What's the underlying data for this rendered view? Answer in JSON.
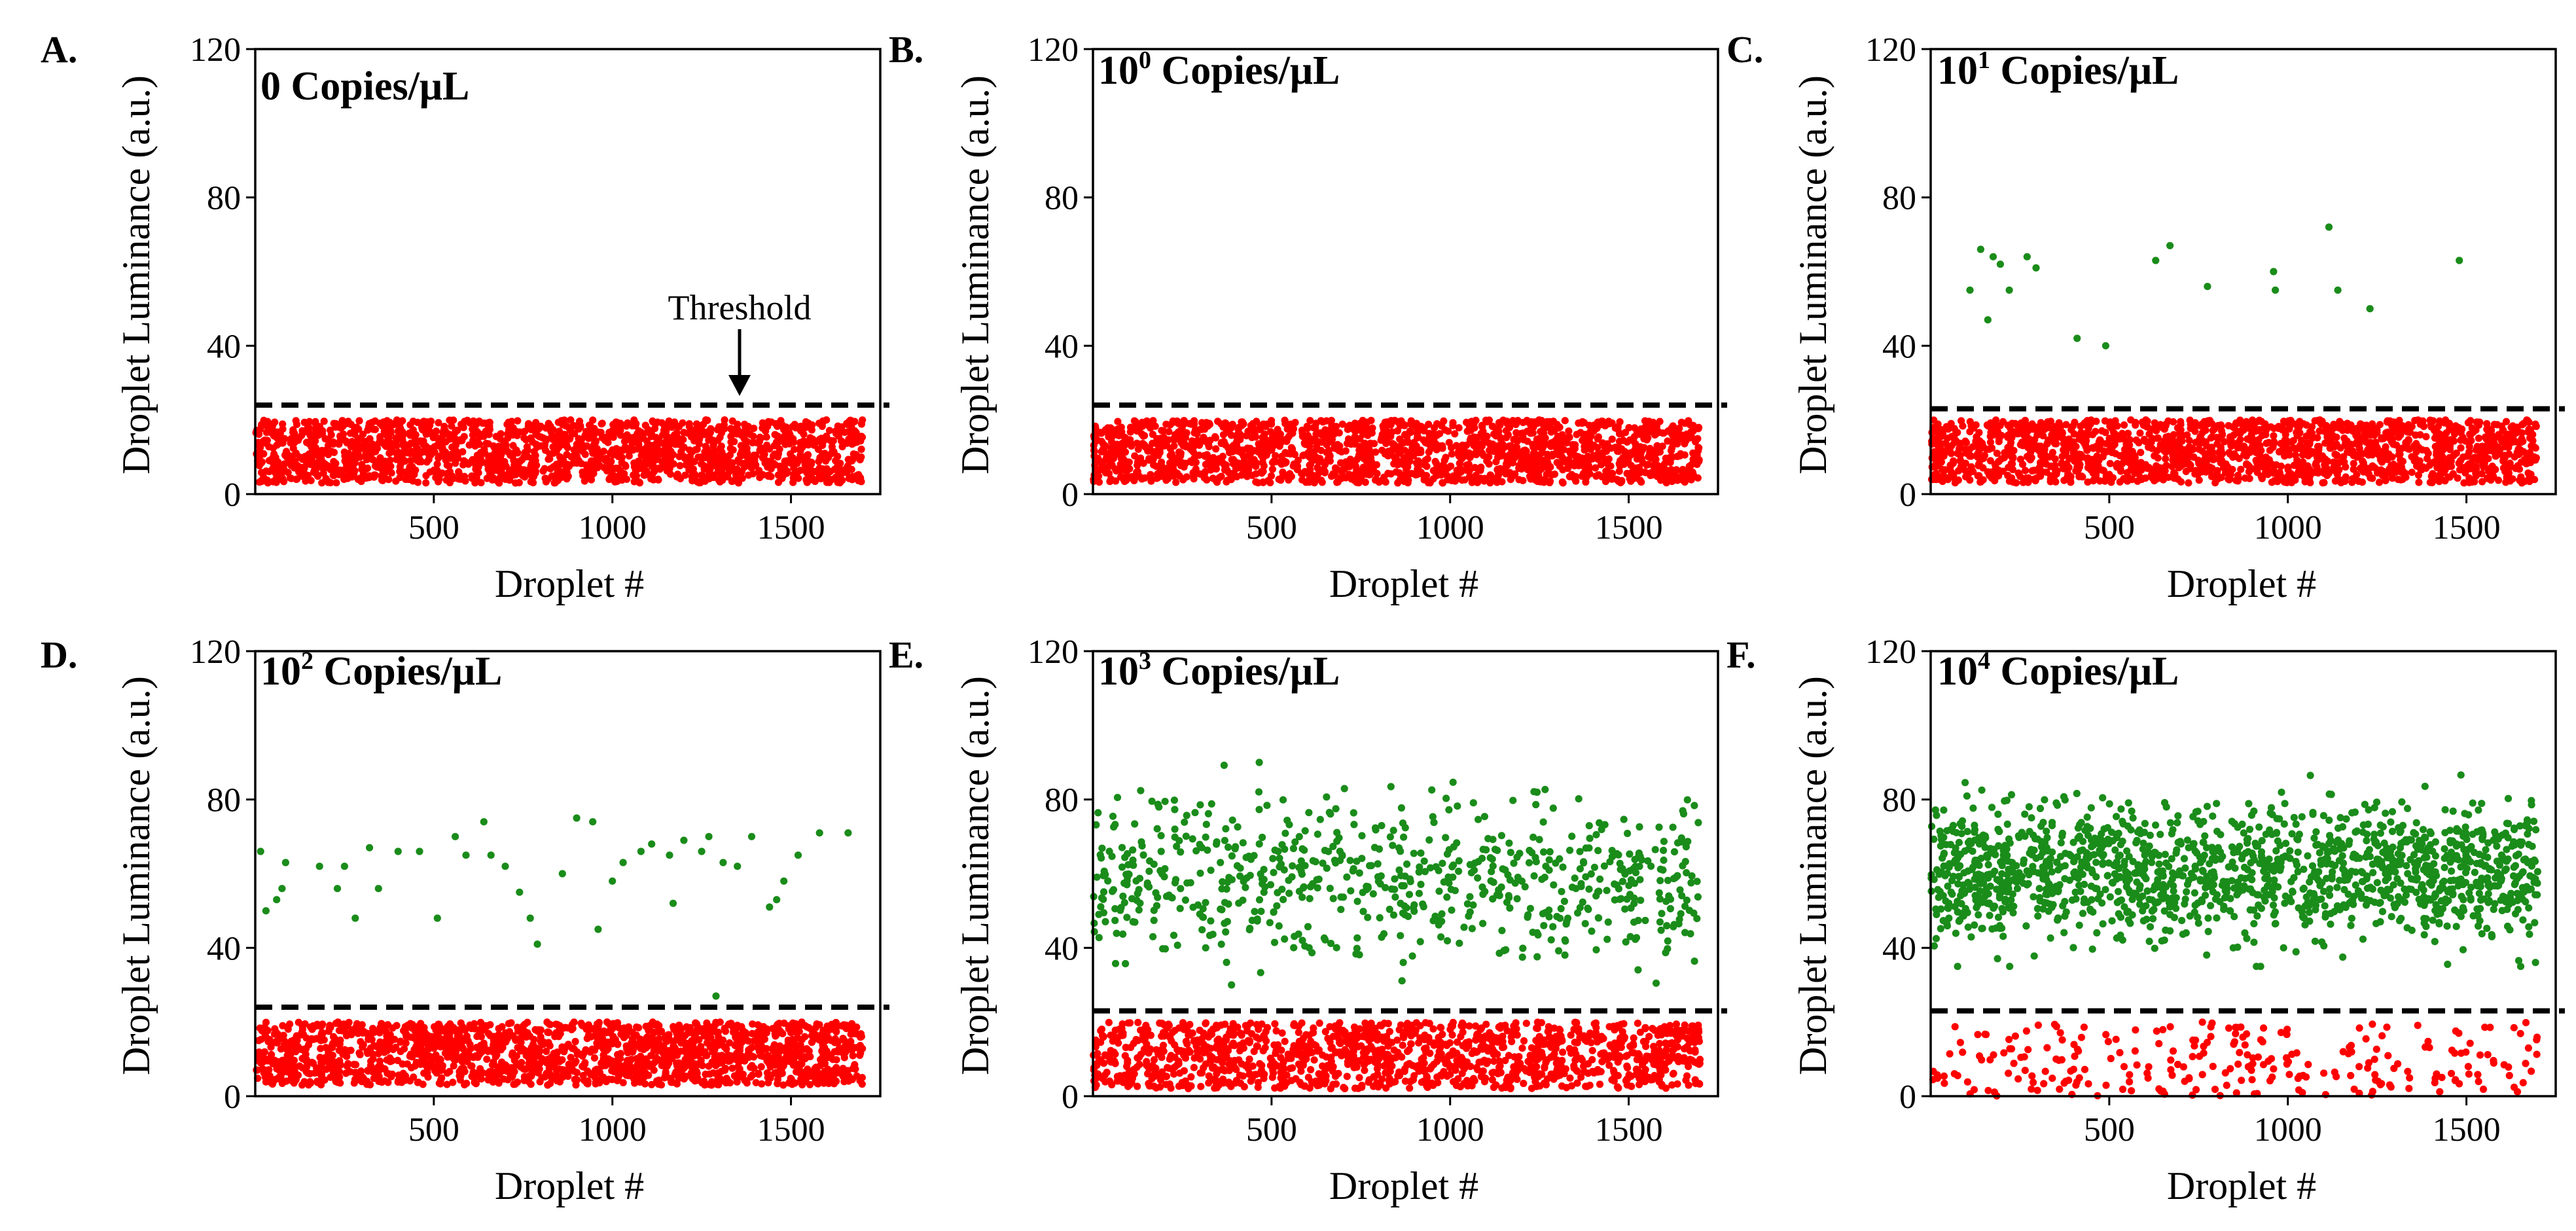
{
  "chart_data": [
    {
      "type": "scatter",
      "panel_label": "A.",
      "title": "0 Copies/μL",
      "title_base": "",
      "title_exp": "",
      "title_rest": "0 Copies/μL",
      "xlabel": "Droplet #",
      "ylabel": "Droplet Luminance (a.u.)",
      "xlim": [
        0,
        1750
      ],
      "ylim": [
        0,
        120
      ],
      "xticks": [
        500,
        1000,
        1500
      ],
      "yticks": [
        0,
        40,
        80,
        120
      ],
      "threshold": 24,
      "annotation": {
        "text": "Threshold",
        "x": 1430,
        "y": 24
      },
      "series": [
        {
          "name": "",
          "color": "#ff0000",
          "n": 1700,
          "x_range": [
            1,
            1700
          ],
          "y_range": [
            3,
            20
          ]
        }
      ]
    },
    {
      "type": "scatter",
      "panel_label": "B.",
      "title": "10^0 Copies/μL",
      "title_base": "10",
      "title_exp": "0",
      "title_rest": " Copies/μL",
      "xlabel": "Droplet #",
      "ylabel": "Droplet Luminance (a.u.)",
      "xlim": [
        0,
        1750
      ],
      "ylim": [
        0,
        120
      ],
      "xticks": [
        500,
        1000,
        1500
      ],
      "yticks": [
        0,
        40,
        80,
        120
      ],
      "threshold": 24,
      "series": [
        {
          "name": "",
          "color": "#ff0000",
          "n": 1700,
          "x_range": [
            1,
            1700
          ],
          "y_range": [
            3,
            20
          ]
        }
      ]
    },
    {
      "type": "scatter",
      "panel_label": "C.",
      "title": "10^1 Copies/μL",
      "title_base": "10",
      "title_exp": "1",
      "title_rest": " Copies/μL",
      "xlabel": "Droplet #",
      "ylabel": "Droplet Luminance (a.u.)",
      "xlim": [
        0,
        1750
      ],
      "ylim": [
        0,
        120
      ],
      "xticks": [
        500,
        1000,
        1500
      ],
      "yticks": [
        0,
        40,
        80,
        120
      ],
      "threshold": 23,
      "series": [
        {
          "name": "",
          "color": "#ff0000",
          "n": 1700,
          "x_range": [
            1,
            1700
          ],
          "y_range": [
            3,
            20
          ]
        },
        {
          "name": "",
          "color": "#1a8c1a",
          "points": [
            [
              110,
              55
            ],
            [
              140,
              66
            ],
            [
              160,
              47
            ],
            [
              175,
              64
            ],
            [
              195,
              62
            ],
            [
              220,
              55
            ],
            [
              270,
              64
            ],
            [
              295,
              61
            ],
            [
              410,
              42
            ],
            [
              490,
              40
            ],
            [
              630,
              63
            ],
            [
              670,
              67
            ],
            [
              775,
              56
            ],
            [
              960,
              60
            ],
            [
              965,
              55
            ],
            [
              1115,
              72
            ],
            [
              1140,
              55
            ],
            [
              1230,
              50
            ],
            [
              1480,
              63
            ]
          ]
        }
      ]
    },
    {
      "type": "scatter",
      "panel_label": "D.",
      "title": "10^2 Copies/μL",
      "title_base": "10",
      "title_exp": "2",
      "title_rest": " Copies/μL",
      "xlabel": "Droplet #",
      "ylabel": "Droplet Luminance (a.u.)",
      "xlim": [
        0,
        1750
      ],
      "ylim": [
        0,
        120
      ],
      "xticks": [
        500,
        1000,
        1500
      ],
      "yticks": [
        0,
        40,
        80,
        120
      ],
      "threshold": 24,
      "series": [
        {
          "name": "",
          "color": "#ff0000",
          "n": 1700,
          "x_range": [
            1,
            1700
          ],
          "y_range": [
            3,
            20
          ]
        },
        {
          "name": "",
          "color": "#1a8c1a",
          "points": [
            [
              15,
              66
            ],
            [
              30,
              50
            ],
            [
              60,
              53
            ],
            [
              75,
              56
            ],
            [
              85,
              63
            ],
            [
              180,
              62
            ],
            [
              230,
              56
            ],
            [
              250,
              62
            ],
            [
              280,
              48
            ],
            [
              320,
              67
            ],
            [
              345,
              56
            ],
            [
              400,
              66
            ],
            [
              460,
              66
            ],
            [
              510,
              48
            ],
            [
              560,
              70
            ],
            [
              590,
              65
            ],
            [
              640,
              74
            ],
            [
              660,
              65
            ],
            [
              700,
              62
            ],
            [
              740,
              55
            ],
            [
              770,
              48
            ],
            [
              790,
              41
            ],
            [
              860,
              60
            ],
            [
              900,
              75
            ],
            [
              945,
              74
            ],
            [
              960,
              45
            ],
            [
              1000,
              58
            ],
            [
              1030,
              63
            ],
            [
              1080,
              66
            ],
            [
              1110,
              68
            ],
            [
              1160,
              65
            ],
            [
              1170,
              52
            ],
            [
              1200,
              69
            ],
            [
              1250,
              66
            ],
            [
              1270,
              70
            ],
            [
              1290,
              27
            ],
            [
              1310,
              63
            ],
            [
              1350,
              62
            ],
            [
              1390,
              70
            ],
            [
              1440,
              51
            ],
            [
              1460,
              53
            ],
            [
              1480,
              58
            ],
            [
              1520,
              65
            ],
            [
              1580,
              71
            ],
            [
              1660,
              71
            ]
          ]
        }
      ]
    },
    {
      "type": "scatter",
      "panel_label": "E.",
      "title": "10^3 Copies/μL",
      "title_base": "10",
      "title_exp": "3",
      "title_rest": " Copies/μL",
      "xlabel": "Droplet #",
      "ylabel": "Droplet Luminance (a.u.)",
      "xlim": [
        0,
        1750
      ],
      "ylim": [
        0,
        120
      ],
      "xticks": [
        500,
        1000,
        1500
      ],
      "yticks": [
        0,
        40,
        80,
        120
      ],
      "threshold": 23,
      "series": [
        {
          "name": "",
          "color": "#ff0000",
          "n": 1300,
          "x_range": [
            1,
            1700
          ],
          "y_range": [
            2,
            20
          ]
        },
        {
          "name": "",
          "color": "#1a8c1a",
          "n": 700,
          "x_range": [
            1,
            1700
          ],
          "y_range": [
            30,
            90
          ],
          "center": 58,
          "spread": 11
        }
      ]
    },
    {
      "type": "scatter",
      "panel_label": "F.",
      "title": "10^4 Copies/μL",
      "title_base": "10",
      "title_exp": "4",
      "title_rest": " Copies/μL",
      "xlabel": "Droplet #",
      "ylabel": "Droplet Luminance (a.u.)",
      "xlim": [
        0,
        1750
      ],
      "ylim": [
        0,
        120
      ],
      "xticks": [
        500,
        1000,
        1500
      ],
      "yticks": [
        0,
        40,
        80,
        120
      ],
      "threshold": 23,
      "series": [
        {
          "name": "",
          "color": "#ff0000",
          "n": 260,
          "x_range": [
            1,
            1700
          ],
          "y_range": [
            0,
            20
          ]
        },
        {
          "name": "",
          "color": "#1a8c1a",
          "n": 1500,
          "x_range": [
            1,
            1700
          ],
          "y_range": [
            35,
            92
          ],
          "center": 60,
          "spread": 9
        }
      ]
    }
  ]
}
